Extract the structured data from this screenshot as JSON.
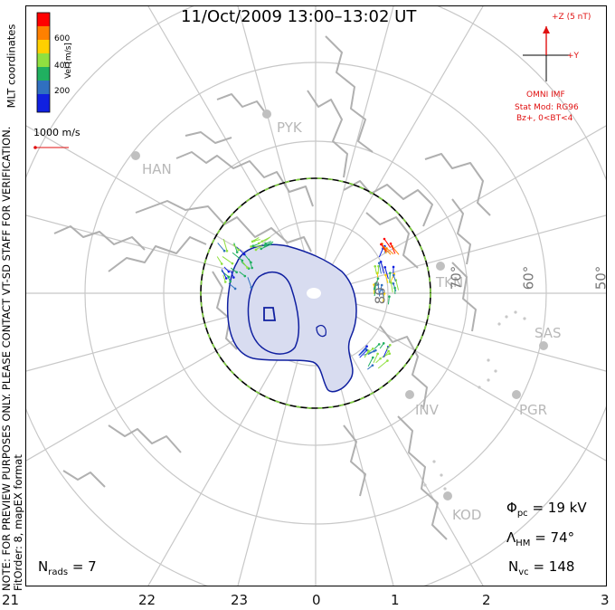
{
  "title": "11/Oct/2009 13:00–13:02 UT",
  "notes": {
    "line1": "NOTE: FOR PREVIEW PURPOSES ONLY. PLEASE CONTACT VT-SD STAFF FOR VERIFICATION.",
    "line2": "FitOrder: 8, mapEX format",
    "coords": "MLT coordinates"
  },
  "velocity_scale": {
    "label": "Vel [m/s]",
    "ticks": [
      "600",
      "400",
      "200"
    ],
    "colors": [
      "#ff0000",
      "#ff8000",
      "#ffd000",
      "#90e040",
      "#20b060",
      "#3070c0",
      "#1020e0"
    ],
    "reference_vector": "1000 m/s"
  },
  "imf": {
    "bz_label": "+Z (5 nT)",
    "by_label": "+Y",
    "source": "OMNI IMF",
    "stat_model": "Stat Mod: RG96",
    "condition": "Bz+, 0<BT<4"
  },
  "stats": {
    "phi_pc_label": "Φ",
    "phi_pc_sub": "pc",
    "phi_pc_value": "=  19 kV",
    "lambda_hm_label": "Λ",
    "lambda_hm_sub": "HM",
    "lambda_hm_value": "=  74°",
    "n_vc_label": "N",
    "n_vc_sub": "vc",
    "n_vc_value": "=  148",
    "n_rads_label": "N",
    "n_rads_sub": "rads",
    "n_rads_value": "=  7"
  },
  "mlt_axis": [
    "21",
    "22",
    "23",
    "0",
    "1",
    "2",
    "3"
  ],
  "latitude_labels": [
    "80°",
    "70°",
    "60°",
    "50°"
  ],
  "radar_sites": [
    "PYK",
    "HAN",
    "TKN",
    "SAS",
    "INV",
    "PGR",
    "KOD"
  ],
  "colors": {
    "grid": "#c8c8c8",
    "coast": "#b0b0b0",
    "convection_fill": "#d8dcf0",
    "contour": "#1020a0",
    "imf_red": "#e01010"
  }
}
